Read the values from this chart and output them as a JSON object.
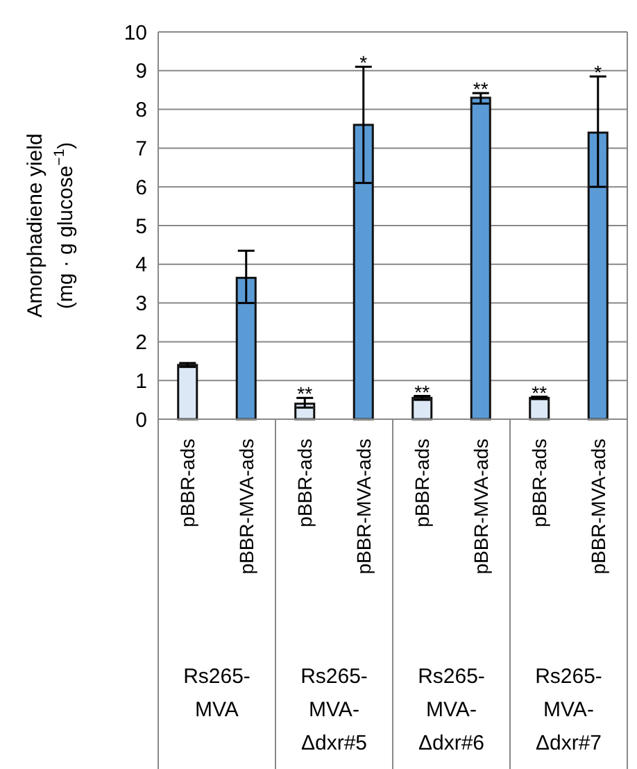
{
  "chart_data": {
    "type": "bar",
    "ylabel": "Amorphadiene yield (mg · g glucose$^{−1}$)",
    "categories": [
      "pBBR-ads",
      "pBBR-MVA-ads",
      "pBBR-ads",
      "pBBR-MVA-ads",
      "pBBR-ads",
      "pBBR-MVA-ads",
      "pBBR-ads",
      "pBBR-MVA-ads"
    ],
    "values": [
      1.4,
      3.65,
      0.4,
      7.6,
      0.55,
      8.3,
      0.55,
      7.4
    ],
    "errors": [
      0.05,
      [
        3.0,
        4.35
      ],
      [
        0.3,
        0.55
      ],
      [
        6.1,
        9.1
      ],
      0.05,
      [
        8.15,
        8.42
      ],
      0.03,
      [
        6.0,
        8.85
      ]
    ],
    "value_labels": [
      null,
      null,
      "**",
      "*",
      "**",
      "**",
      "**",
      "*"
    ],
    "colors": [
      "#dce8f5",
      "#5b9bd5",
      "#dce8f5",
      "#5b9bd5",
      "#dce8f5",
      "#5b9bd5",
      "#dce8f5",
      "#5b9bd5"
    ],
    "annotations": [
      "Rs265-MVA",
      "Rs265-MVA-Δdxr#5",
      "Rs265-MVA-Δdxr#6",
      "Rs265-MVA-Δdxr#7"
    ],
    "ylim": [
      0,
      10
    ],
    "yticks": [
      0,
      1,
      2,
      3,
      4,
      5,
      6,
      7,
      8,
      9,
      10
    ],
    "grid": "y"
  }
}
